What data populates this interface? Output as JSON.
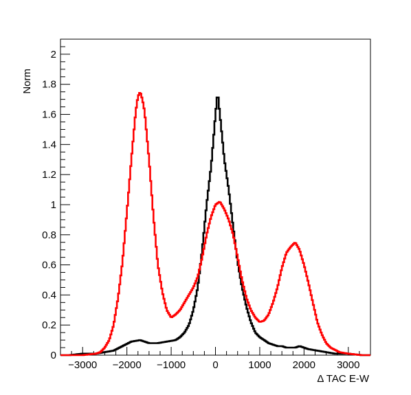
{
  "chart_data": {
    "type": "line",
    "title": "",
    "xlabel": "Δ TAC E-W",
    "ylabel": "Norm",
    "xlim": [
      -3500,
      3500
    ],
    "ylim": [
      0,
      2.1
    ],
    "grid": false,
    "legend": "none",
    "x_ticks": [
      -3000,
      -2000,
      -1000,
      0,
      1000,
      2000,
      3000
    ],
    "x_tick_labels": [
      "−3000",
      "−2000",
      "−1000",
      "0",
      "1000",
      "2000",
      "3000"
    ],
    "y_ticks": [
      0,
      0.2,
      0.4,
      0.6,
      0.8,
      1.0,
      1.2,
      1.4,
      1.6,
      1.8,
      2.0
    ],
    "y_tick_labels": [
      "0",
      "0.2",
      "0.4",
      "0.6",
      "0.8",
      "1",
      "1.2",
      "1.4",
      "1.6",
      "1.8",
      "2"
    ],
    "series": [
      {
        "color": "#000000",
        "x": [
          -3300,
          -3000,
          -2700,
          -2500,
          -2300,
          -2100,
          -1900,
          -1700,
          -1500,
          -1300,
          -1100,
          -900,
          -800,
          -700,
          -600,
          -500,
          -400,
          -300,
          -200,
          -100,
          -50,
          0,
          50,
          100,
          150,
          200,
          300,
          400,
          500,
          600,
          700,
          800,
          900,
          1000,
          1100,
          1200,
          1300,
          1400,
          1500,
          1600,
          1700,
          1800,
          1900,
          2000,
          2100,
          2300,
          2500,
          2700,
          3000,
          3300
        ],
        "y": [
          0,
          0.01,
          0.01,
          0.02,
          0.03,
          0.06,
          0.09,
          0.1,
          0.08,
          0.08,
          0.09,
          0.1,
          0.12,
          0.15,
          0.2,
          0.3,
          0.45,
          0.7,
          1.0,
          1.25,
          1.42,
          1.6,
          1.75,
          1.6,
          1.45,
          1.3,
          1.1,
          0.85,
          0.62,
          0.45,
          0.32,
          0.22,
          0.15,
          0.12,
          0.1,
          0.08,
          0.07,
          0.06,
          0.06,
          0.05,
          0.05,
          0.05,
          0.06,
          0.05,
          0.04,
          0.03,
          0.02,
          0.01,
          0.01,
          0
        ]
      },
      {
        "color": "#ff0000",
        "x": [
          -3300,
          -3000,
          -2700,
          -2600,
          -2500,
          -2400,
          -2300,
          -2200,
          -2100,
          -2000,
          -1900,
          -1800,
          -1750,
          -1700,
          -1650,
          -1600,
          -1500,
          -1400,
          -1300,
          -1200,
          -1100,
          -1000,
          -900,
          -800,
          -700,
          -600,
          -500,
          -400,
          -300,
          -200,
          -100,
          0,
          100,
          200,
          300,
          400,
          500,
          600,
          700,
          800,
          900,
          1000,
          1100,
          1200,
          1300,
          1400,
          1500,
          1600,
          1700,
          1800,
          1900,
          2000,
          2100,
          2200,
          2300,
          2400,
          2500,
          2600,
          2800,
          3000,
          3300
        ],
        "y": [
          0,
          0.0,
          0.01,
          0.02,
          0.05,
          0.1,
          0.2,
          0.38,
          0.62,
          0.95,
          1.3,
          1.62,
          1.72,
          1.75,
          1.7,
          1.62,
          1.3,
          0.92,
          0.6,
          0.42,
          0.3,
          0.25,
          0.27,
          0.3,
          0.35,
          0.4,
          0.45,
          0.52,
          0.65,
          0.8,
          0.92,
          1.0,
          1.02,
          0.97,
          0.9,
          0.8,
          0.65,
          0.5,
          0.38,
          0.3,
          0.25,
          0.22,
          0.23,
          0.27,
          0.35,
          0.45,
          0.58,
          0.68,
          0.72,
          0.75,
          0.7,
          0.6,
          0.48,
          0.35,
          0.22,
          0.14,
          0.08,
          0.05,
          0.02,
          0.01,
          0
        ]
      }
    ]
  }
}
